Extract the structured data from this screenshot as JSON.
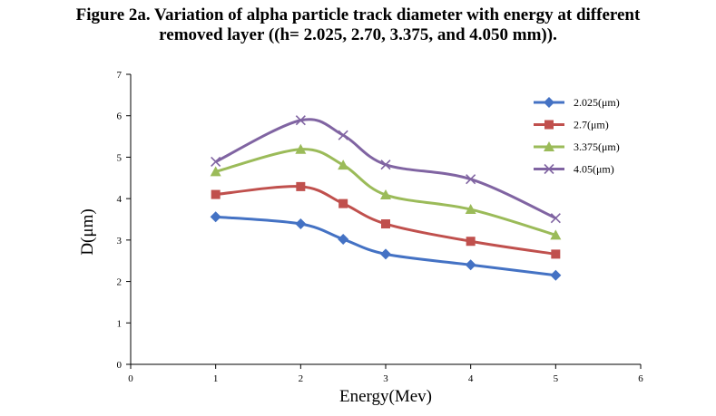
{
  "figure": {
    "title_line1": "Figure 2a. Variation of alpha particle track diameter with energy at different",
    "title_line2": "removed layer ((h= 2.025, 2.70, 3.375, and 4.050 mm))."
  },
  "chart_data": {
    "type": "line",
    "title": "Figure 2a. Variation of alpha particle track diameter with energy at different removed layer ((h= 2.025, 2.70, 3.375, and 4.050 mm)).",
    "xlabel": "Energy(Mev)",
    "ylabel": "D(μm)",
    "xlim": [
      0,
      6
    ],
    "ylim": [
      0,
      7
    ],
    "xticks": [
      0,
      1,
      2,
      3,
      4,
      5,
      6
    ],
    "yticks": [
      0,
      1,
      2,
      3,
      4,
      5,
      6,
      7
    ],
    "grid": false,
    "legend_position": "top-right",
    "x": [
      1,
      2,
      2.5,
      3,
      4,
      5
    ],
    "series": [
      {
        "name": "2.025(μm)",
        "color": "#4472c4",
        "marker": "diamond",
        "values": [
          3.56,
          3.39,
          3.02,
          2.66,
          2.4,
          2.15
        ]
      },
      {
        "name": "2.7(μm)",
        "color": "#c0504d",
        "marker": "square",
        "values": [
          4.1,
          4.29,
          3.88,
          3.39,
          2.97,
          2.66
        ]
      },
      {
        "name": "3.375(μm)",
        "color": "#9bbb59",
        "marker": "triangle",
        "values": [
          4.65,
          5.19,
          4.81,
          4.09,
          3.74,
          3.12
        ]
      },
      {
        "name": "4.05(μm)",
        "color": "#8064a2",
        "marker": "x",
        "values": [
          4.89,
          5.89,
          5.53,
          4.82,
          4.47,
          3.53
        ]
      }
    ]
  }
}
